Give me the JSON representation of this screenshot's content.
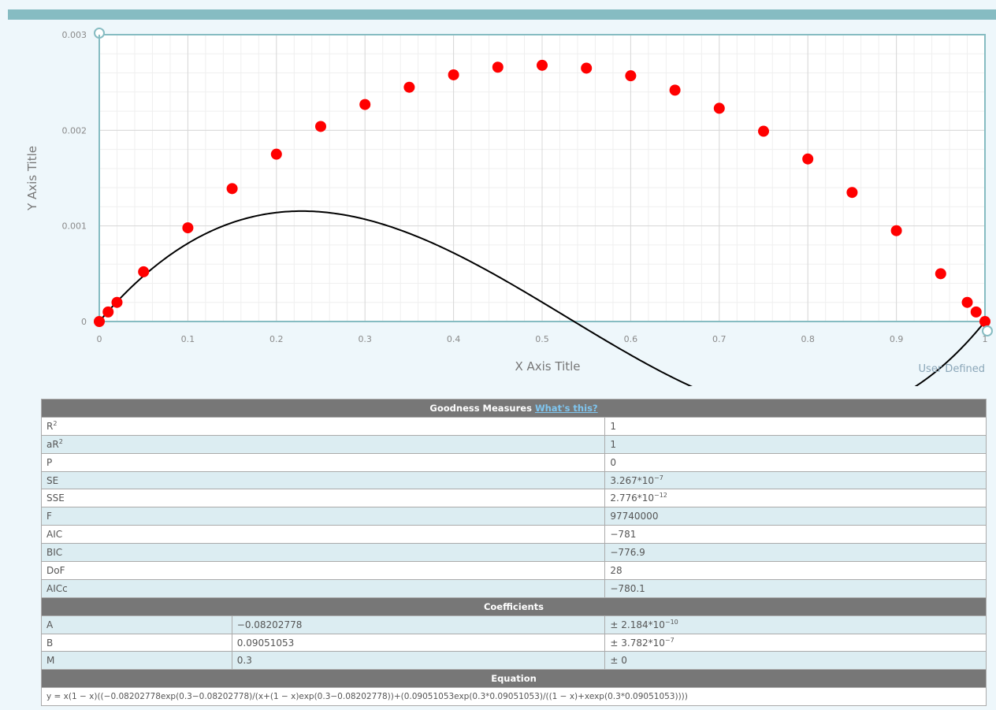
{
  "chart_data": {
    "type": "scatter",
    "xlabel": "X Axis Title",
    "ylabel": "Y Axis Title",
    "xlim": [
      0,
      1
    ],
    "ylim": [
      0,
      0.003
    ],
    "x_ticks": [
      "0",
      "0.1",
      "0.2",
      "0.3",
      "0.4",
      "0.5",
      "0.6",
      "0.7",
      "0.8",
      "0.9",
      "1"
    ],
    "y_ticks": [
      "0",
      "0.001",
      "0.002",
      "0.003"
    ],
    "grid": true,
    "points": {
      "x": [
        0,
        0.01,
        0.02,
        0.05,
        0.1,
        0.15,
        0.2,
        0.25,
        0.3,
        0.35,
        0.4,
        0.45,
        0.5,
        0.55,
        0.6,
        0.65,
        0.7,
        0.75,
        0.8,
        0.85,
        0.9,
        0.95,
        0.98,
        0.99,
        1
      ],
      "y": [
        0,
        0.0001,
        0.0002,
        0.00052,
        0.00098,
        0.00139,
        0.00175,
        0.00204,
        0.00227,
        0.00245,
        0.00258,
        0.00266,
        0.00268,
        0.00265,
        0.00257,
        0.00242,
        0.00223,
        0.00199,
        0.0017,
        0.00135,
        0.00095,
        0.0005,
        0.0002,
        0.0001,
        0
      ]
    },
    "fit_curve": {
      "A": -0.08202778,
      "B": 0.09051053,
      "M": 0.3
    },
    "point_color": "#ff0000",
    "curve_color": "#000000",
    "frame_color": "#86bcc2"
  },
  "labels": {
    "user_defined": "User Defined"
  },
  "goodness": {
    "title": "Goodness Measures",
    "link": "What's this?",
    "rows": [
      {
        "name": "R",
        "sup": "2",
        "value": "1",
        "vsup": ""
      },
      {
        "name": "aR",
        "sup": "2",
        "value": "1",
        "vsup": ""
      },
      {
        "name": "P",
        "sup": "",
        "value": "0",
        "vsup": ""
      },
      {
        "name": "SE",
        "sup": "",
        "value": "3.267*10",
        "vsup": "−7"
      },
      {
        "name": "SSE",
        "sup": "",
        "value": "2.776*10",
        "vsup": "−12"
      },
      {
        "name": "F",
        "sup": "",
        "value": "97740000",
        "vsup": ""
      },
      {
        "name": "AIC",
        "sup": "",
        "value": "−781",
        "vsup": ""
      },
      {
        "name": "BIC",
        "sup": "",
        "value": "−776.9",
        "vsup": ""
      },
      {
        "name": "DoF",
        "sup": "",
        "value": "28",
        "vsup": ""
      },
      {
        "name": "AICc",
        "sup": "",
        "value": "−780.1",
        "vsup": ""
      }
    ]
  },
  "coefficients": {
    "title": "Coefficients",
    "rows": [
      {
        "name": "A",
        "value": "−0.08202778",
        "err": "± 2.184*10",
        "esup": "−10"
      },
      {
        "name": "B",
        "value": "0.09051053",
        "err": "± 3.782*10",
        "esup": "−7"
      },
      {
        "name": "M",
        "value": "0.3",
        "err": "± 0",
        "esup": ""
      }
    ]
  },
  "equation": {
    "title": "Equation",
    "text": "y = x(1 − x)((−0.08202778exp(0.3−0.08202778)/(x+(1 − x)exp(0.3−0.08202778))+(0.09051053exp(0.3*0.09051053)/((1 − x)+xexp(0.3*0.09051053))))"
  }
}
